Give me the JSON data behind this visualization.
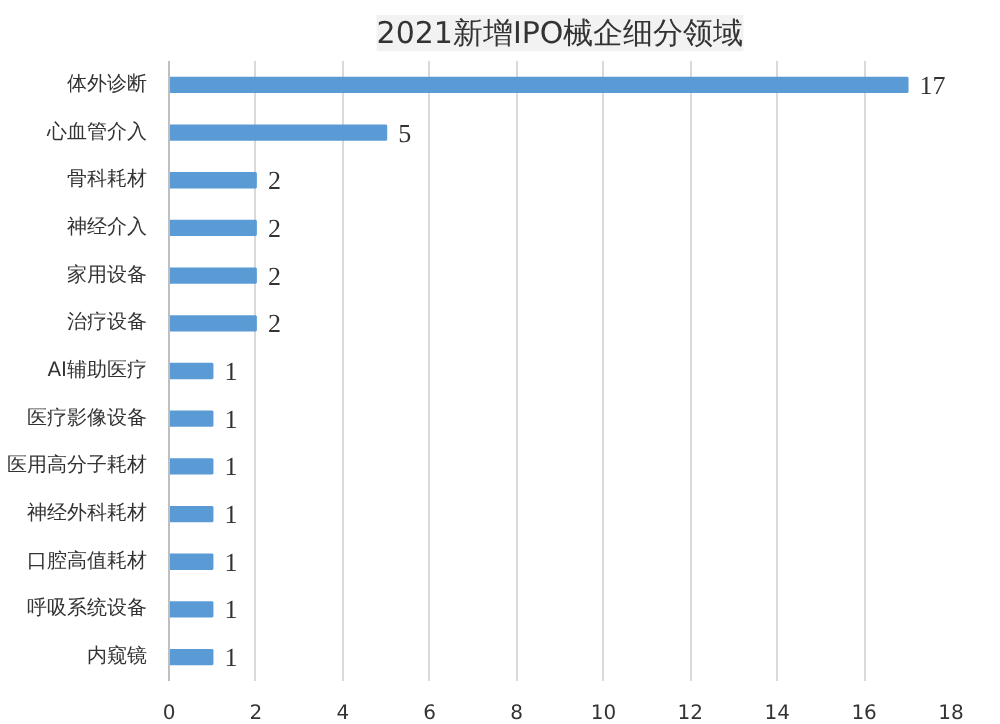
{
  "chart_data": {
    "type": "bar",
    "orientation": "horizontal",
    "title": "2021新增IPO械企细分领域",
    "categories": [
      "体外诊断",
      "心血管介入",
      "骨科耗材",
      "神经介入",
      "家用设备",
      "治疗设备",
      "AI辅助医疗",
      "医疗影像设备",
      "医用高分子耗材",
      "神经外科耗材",
      "口腔高值耗材",
      "呼吸系统设备",
      "内窥镜"
    ],
    "values": [
      17,
      5,
      2,
      2,
      2,
      2,
      1,
      1,
      1,
      1,
      1,
      1,
      1
    ],
    "color": "#5b9bd5",
    "xlim": [
      0,
      18
    ],
    "xticks": [
      0,
      2,
      4,
      6,
      8,
      10,
      12,
      14,
      16,
      18
    ],
    "grid": "x",
    "data_labels": true
  }
}
